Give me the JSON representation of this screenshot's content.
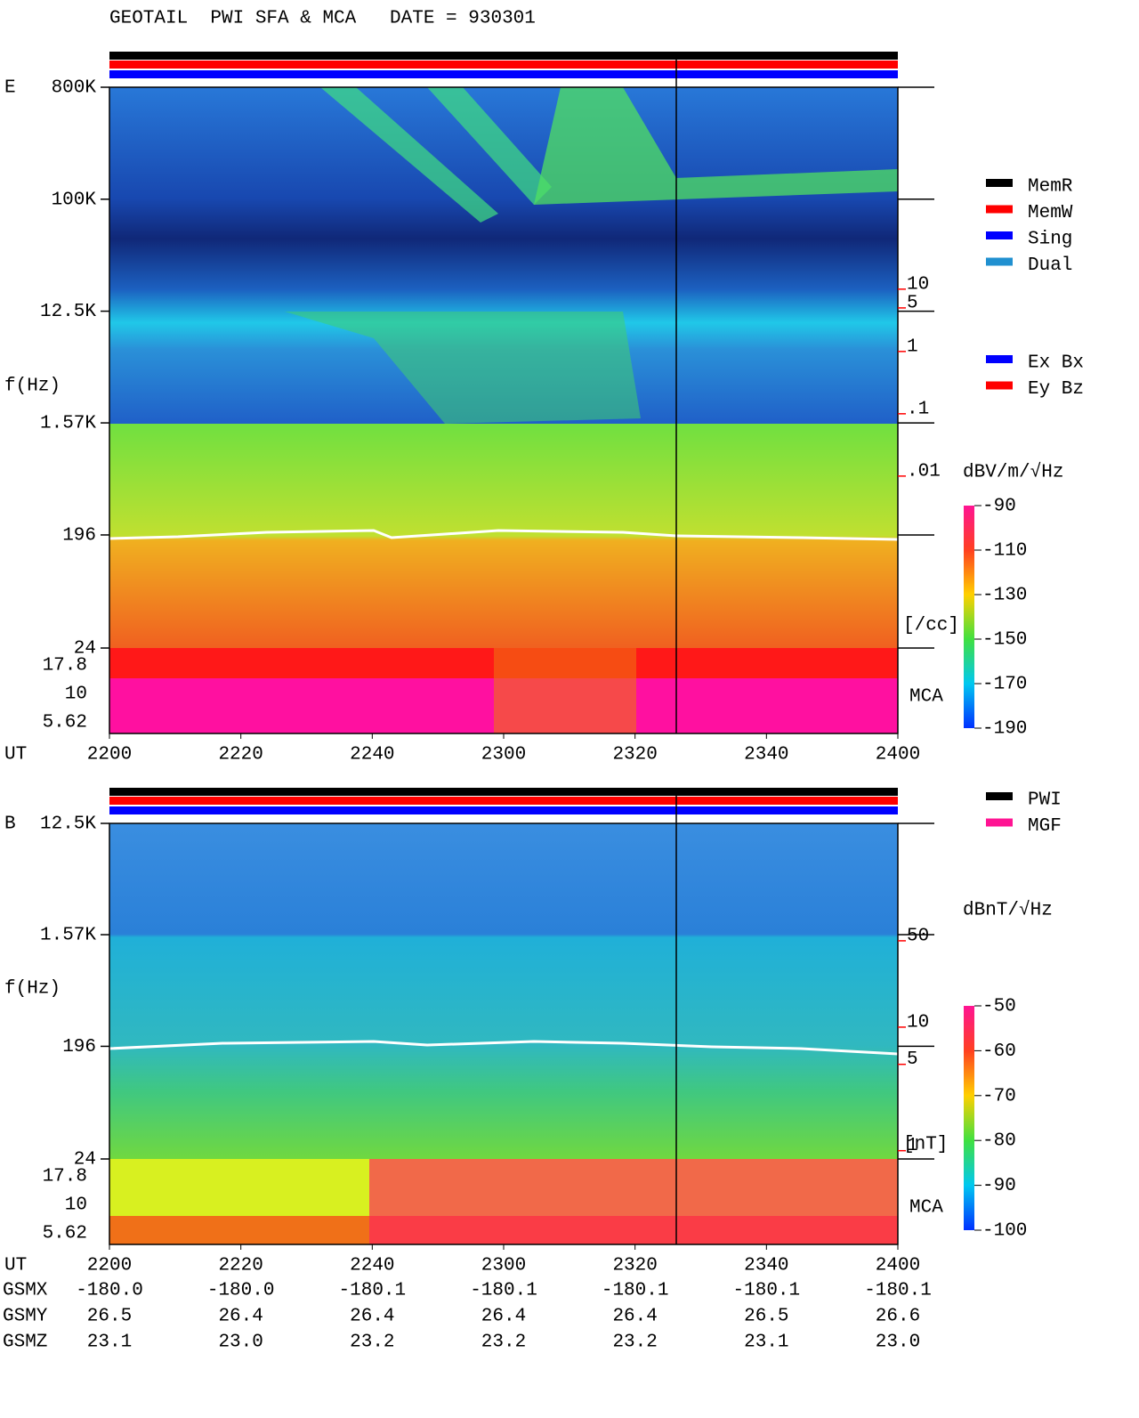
{
  "title": "GEOTAIL  PWI SFA & MCA   DATE = 930301",
  "chart_data": [
    {
      "type": "spectrogram",
      "panel": "E",
      "ylabel": "f(Hz)",
      "xlabel": "UT",
      "log_y": true,
      "ylim": [
        24,
        800000
      ],
      "yticks": [
        {
          "value": 800000,
          "label": "800K"
        },
        {
          "value": 100000,
          "label": "100K"
        },
        {
          "value": 12500,
          "label": "12.5K"
        },
        {
          "value": 1570,
          "label": "1.57K"
        },
        196,
        24
      ],
      "x_labels": [
        "2200",
        "2220",
        "2240",
        "2300",
        "2320",
        "2340",
        "2400"
      ],
      "mca_label": "MCA",
      "mca_ticks": [
        17.8,
        10,
        5.62
      ],
      "y2log": true,
      "y2lim": [
        1.74e-05,
        17400
      ],
      "y2ticks": [
        10,
        5,
        1,
        {
          "value": 0.1,
          "label": ".1"
        },
        {
          "value": 0.01,
          "label": ".01"
        }
      ],
      "y2label": "[/cc]",
      "y2color": "#ff0000",
      "colorbar": {
        "label": "dBV/m/√Hz",
        "lim": [
          -190,
          -90
        ],
        "ticks": [
          -90,
          -110,
          -130,
          -150,
          -170,
          -190
        ]
      },
      "legend_groups": [
        [
          {
            "name": "MemR",
            "color": "#000000"
          },
          {
            "name": "MemW",
            "color": "#ff0000"
          },
          {
            "name": "Sing",
            "color": "#0000ff"
          },
          {
            "name": "Dual",
            "color": "#2090d0"
          }
        ],
        [
          {
            "name": "Ex Bx",
            "color": "#0000ff"
          },
          {
            "name": "Ey Bz",
            "color": "#ff0000"
          }
        ]
      ]
    },
    {
      "type": "spectrogram",
      "panel": "B",
      "ylabel": "f(Hz)",
      "xlabel": "UT",
      "log_y": true,
      "ylim": [
        24,
        12500
      ],
      "yticks": [
        {
          "value": 12500,
          "label": "12.5K"
        },
        {
          "value": 1570,
          "label": "1.57K"
        },
        196,
        24
      ],
      "x_labels": [
        "2200",
        "2220",
        "2240",
        "2300",
        "2320",
        "2340",
        "2400"
      ],
      "mca_label": "MCA",
      "mca_ticks": [
        17.8,
        10,
        5.62
      ],
      "y2log": true,
      "y2lim": [
        0.857,
        446
      ],
      "y2ticks": [
        50,
        10,
        5,
        1
      ],
      "y2label": "[nT]",
      "y2color": "#ff0000",
      "colorbar": {
        "label": "dBnT/√Hz",
        "lim": [
          -100,
          -50
        ],
        "ticks": [
          -50,
          -60,
          -70,
          -80,
          -90,
          -100
        ]
      },
      "legend_groups": [
        [
          {
            "name": "PWI",
            "color": "#000000"
          },
          {
            "name": "MGF",
            "color": "#ff1493"
          }
        ]
      ]
    }
  ],
  "orbit": {
    "rows": [
      {
        "name": "GSMX",
        "values": [
          "-180.0",
          "-180.0",
          "-180.1",
          "-180.1",
          "-180.1",
          "-180.1",
          "-180.1"
        ]
      },
      {
        "name": "GSMY",
        "values": [
          "26.5",
          "26.4",
          "26.4",
          "26.4",
          "26.4",
          "26.5",
          "26.6"
        ]
      },
      {
        "name": "GSMZ",
        "values": [
          "23.1",
          "23.0",
          "23.2",
          "23.2",
          "23.2",
          "23.1",
          "23.0"
        ]
      }
    ]
  }
}
